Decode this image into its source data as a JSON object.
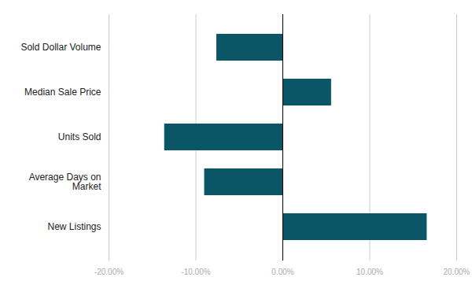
{
  "chart_data": {
    "type": "bar",
    "orientation": "horizontal",
    "categories": [
      "Sold Dollar Volume",
      "Median Sale Price",
      "Units Sold",
      "Average Days on Market",
      "New Listings"
    ],
    "values": [
      -7.6,
      5.6,
      -13.6,
      -9.0,
      16.6
    ],
    "color": "#0a5666",
    "xlim": [
      -20,
      20
    ],
    "xticks": [
      {
        "value": -20,
        "label": "-20.00%"
      },
      {
        "value": -10,
        "label": "-10.00%"
      },
      {
        "value": 0,
        "label": "0.00%"
      },
      {
        "value": 10,
        "label": "10.00%"
      },
      {
        "value": 20,
        "label": "20.00%"
      }
    ],
    "grid": true
  }
}
